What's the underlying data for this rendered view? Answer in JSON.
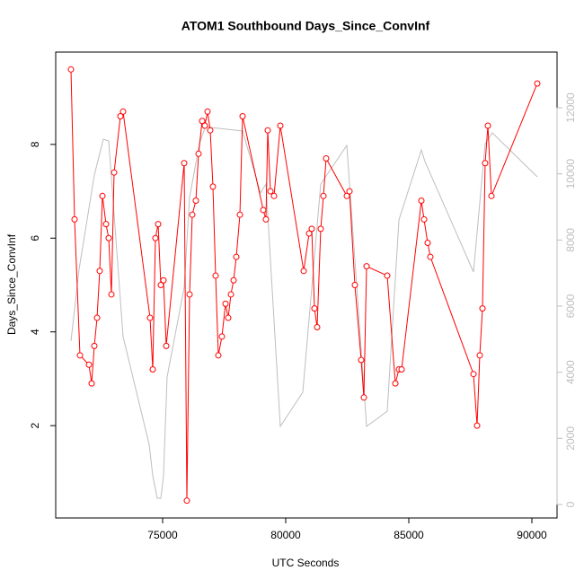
{
  "chart_data": {
    "type": "line",
    "title": "ATOM1 Southbound Days_Since_ConvInf",
    "x_label": "UTC Seconds",
    "y_label": "Days_Since_ConvInf",
    "xlim": [
      70657,
      91022
    ],
    "xticks": [
      75000,
      80000,
      85000,
      90000
    ],
    "ylim": [
      0.03,
      9.97
    ],
    "yticks": [
      2,
      4,
      6,
      8
    ],
    "y2lim": [
      -407,
      13684
    ],
    "y2ticks": [
      0,
      2000,
      4000,
      6000,
      8000,
      10000,
      12000
    ],
    "y2_color": "#bebebe",
    "series": [
      {
        "color": "#ff0000",
        "markers": true,
        "x": [
          71277,
          71423,
          71642,
          72007,
          72117,
          72226,
          72336,
          72445,
          72555,
          72701,
          72810,
          72920,
          73029,
          73285,
          73394,
          74489,
          74599,
          74708,
          74818,
          74927,
          75036,
          75146,
          75876,
          75985,
          76095,
          76204,
          76350,
          76460,
          76606,
          76715,
          76825,
          76934,
          77044,
          77153,
          77263,
          77409,
          77555,
          77664,
          77774,
          77883,
          77993,
          78139,
          78248,
          79088,
          79197,
          79270,
          79380,
          79526,
          79781,
          80730,
          80949,
          81058,
          81168,
          81277,
          81423,
          81533,
          81642,
          82482,
          82591,
          82810,
          83066,
          83175,
          83285,
          84124,
          84453,
          84599,
          84708,
          85511,
          85620,
          85766,
          85876,
          87628,
          87774,
          87883,
          87993,
          88102,
          88212,
          88358,
          90219
        ],
        "values": [
          9.6,
          6.4,
          3.5,
          3.3,
          2.9,
          3.7,
          4.3,
          5.3,
          6.9,
          6.3,
          6.0,
          4.8,
          7.4,
          8.6,
          8.7,
          4.3,
          3.2,
          6.0,
          6.3,
          5.0,
          5.1,
          3.7,
          7.6,
          0.4,
          4.8,
          6.5,
          6.8,
          7.8,
          8.5,
          8.4,
          8.7,
          8.3,
          7.1,
          5.2,
          3.5,
          3.9,
          4.6,
          4.3,
          4.8,
          5.1,
          5.6,
          6.5,
          8.6,
          6.6,
          6.4,
          8.3,
          7.0,
          6.9,
          8.4,
          5.3,
          6.1,
          6.2,
          4.5,
          4.1,
          6.2,
          6.9,
          7.7,
          6.9,
          7.0,
          5.0,
          3.4,
          2.6,
          5.4,
          5.2,
          2.9,
          3.2,
          3.2,
          6.8,
          6.4,
          5.9,
          5.6,
          3.1,
          2.0,
          3.5,
          4.5,
          7.6,
          8.4,
          6.9,
          9.3
        ]
      },
      {
        "color": "#bebebe",
        "axis": "y2",
        "markers": false,
        "x": [
          71277,
          71606,
          72226,
          72591,
          72810,
          73394,
          74453,
          74599,
          74781,
          74927,
          75036,
          75182,
          75876,
          76095,
          76496,
          76752,
          76971,
          78248,
          78978,
          79197,
          79781,
          80693,
          81423,
          82482,
          83285,
          84124,
          84599,
          85511,
          85657,
          87628,
          88102,
          88394,
          90219
        ],
        "values": [
          4942,
          7114,
          9965,
          11051,
          10997,
          5077,
          1819,
          869,
          190,
          190,
          869,
          3856,
          6571,
          9286,
          10915,
          11458,
          11404,
          11295,
          9422,
          9693,
          2362,
          3394,
          9693,
          10861,
          2362,
          2824,
          8607,
          10725,
          10372,
          7032,
          10915,
          11241,
          9910
        ]
      }
    ]
  }
}
